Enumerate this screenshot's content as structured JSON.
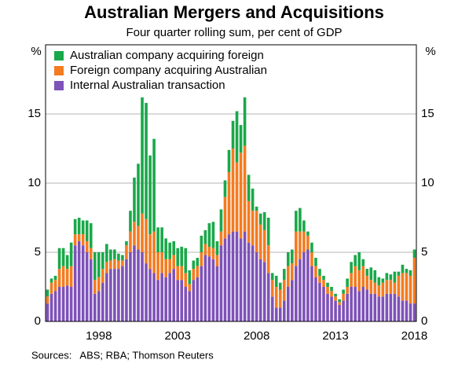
{
  "chart_data": {
    "type": "stacked_bar",
    "title": "Australian Mergers and Acquisitions",
    "subtitle": "Four quarter rolling sum, per cent of GDP",
    "ylabel": "%",
    "y2label": "%",
    "source": "Sources:   ABS; RBA; Thomson Reuters",
    "categories": [
      null,
      null,
      null,
      null,
      null,
      null,
      null,
      null,
      null,
      null,
      null,
      null,
      null,
      "1998",
      null,
      null,
      null,
      null,
      null,
      null,
      null,
      null,
      null,
      null,
      null,
      null,
      null,
      null,
      null,
      null,
      null,
      null,
      null,
      "2003",
      null,
      null,
      null,
      null,
      null,
      null,
      null,
      null,
      null,
      null,
      null,
      null,
      null,
      null,
      null,
      null,
      null,
      null,
      null,
      "2008",
      null,
      null,
      null,
      null,
      null,
      null,
      null,
      null,
      null,
      null,
      null,
      null,
      null,
      null,
      null,
      null,
      null,
      null,
      null,
      "2013",
      null,
      null,
      null,
      null,
      null,
      null,
      null,
      null,
      null,
      null,
      null,
      null,
      null,
      null,
      null,
      null,
      null,
      null,
      null,
      "2018"
    ],
    "series": [
      {
        "name": "Australian company acquiring foreign",
        "color": "#1aa84a",
        "values": [
          0.5,
          0.3,
          0.3,
          1.5,
          1.3,
          1.0,
          1.7,
          1.1,
          1.2,
          1.0,
          1.5,
          1.8,
          2.0,
          1.8,
          1.2,
          1.3,
          0.8,
          0.7,
          0.5,
          0.4,
          0.3,
          1.5,
          3.2,
          4.5,
          8.4,
          8.4,
          5.7,
          6.7,
          1.8,
          1.8,
          1.5,
          1.2,
          1.0,
          1.3,
          1.4,
          1.8,
          1.0,
          0.6,
          0.6,
          1.2,
          1.0,
          1.7,
          1.9,
          1.0,
          1.6,
          1.2,
          1.6,
          2.0,
          3.7,
          2.0,
          3.5,
          1.9,
          1.6,
          0.3,
          0.8,
          1.3,
          2.0,
          0.5,
          0.8,
          0.5,
          0.8,
          1.0,
          1.0,
          1.5,
          1.7,
          0.8,
          0.3,
          0.7,
          0.6,
          0.5,
          0.3,
          0.3,
          0.3,
          0.2,
          0.2,
          0.3,
          0.6,
          0.8,
          0.8,
          1.3,
          0.5,
          0.5,
          0.9,
          0.9,
          0.6,
          0.3,
          0.5,
          0.4,
          0.8,
          0.3,
          0.6,
          0.3,
          0.4,
          0.6
        ]
      },
      {
        "name": "Foreign company acquiring Australian",
        "color": "#f47b20",
        "values": [
          0.5,
          0.8,
          0.8,
          1.3,
          1.5,
          1.2,
          1.5,
          0.8,
          0.5,
          0.8,
          0.8,
          0.8,
          1.0,
          1.0,
          1.0,
          0.8,
          0.6,
          0.7,
          0.6,
          0.4,
          1.0,
          1.5,
          1.7,
          1.7,
          2.8,
          3.2,
          2.5,
          3.0,
          2.0,
          1.5,
          1.3,
          1.0,
          1.0,
          1.0,
          1.0,
          1.0,
          0.5,
          0.8,
          0.8,
          1.0,
          0.8,
          0.7,
          0.8,
          0.8,
          1.0,
          3.0,
          4.5,
          6.0,
          5.0,
          6.2,
          6.2,
          3.0,
          2.5,
          3.0,
          2.5,
          2.3,
          2.0,
          1.2,
          1.5,
          1.3,
          1.5,
          1.5,
          1.2,
          2.5,
          2.0,
          1.5,
          1.0,
          1.0,
          0.8,
          0.5,
          0.5,
          0.5,
          0.4,
          0.3,
          0.2,
          0.5,
          0.5,
          1.0,
          1.5,
          1.5,
          1.5,
          1.0,
          1.0,
          0.8,
          0.8,
          1.0,
          1.0,
          1.0,
          0.8,
          1.5,
          2.0,
          2.0,
          2.0,
          3.3
        ]
      },
      {
        "name": "Internal Australian transaction",
        "color": "#7e52b8",
        "values": [
          1.3,
          2.0,
          2.2,
          2.5,
          2.5,
          2.6,
          2.5,
          5.5,
          5.8,
          5.5,
          5.0,
          4.5,
          2.0,
          2.2,
          2.8,
          3.5,
          3.8,
          3.8,
          3.8,
          4.0,
          4.5,
          5.0,
          5.5,
          5.2,
          5.0,
          4.2,
          3.8,
          3.5,
          3.0,
          3.5,
          3.2,
          3.5,
          3.8,
          3.0,
          3.0,
          2.5,
          2.2,
          3.0,
          3.2,
          4.0,
          4.8,
          4.7,
          4.5,
          4.0,
          5.5,
          6.0,
          6.3,
          6.5,
          6.5,
          6.0,
          6.5,
          5.7,
          5.5,
          5.0,
          4.5,
          4.3,
          3.5,
          1.8,
          1.0,
          1.0,
          1.5,
          2.5,
          3.0,
          4.0,
          4.5,
          5.0,
          5.2,
          4.0,
          3.2,
          2.8,
          2.5,
          2.0,
          1.8,
          1.5,
          1.2,
          1.5,
          2.0,
          2.5,
          2.5,
          2.2,
          2.5,
          2.3,
          2.0,
          2.0,
          1.8,
          1.8,
          2.0,
          2.0,
          2.0,
          1.8,
          1.5,
          1.5,
          1.3,
          1.3
        ]
      }
    ],
    "ylim": [
      0,
      20
    ],
    "yticks": [
      0,
      5,
      10,
      15
    ],
    "y2lim": [
      0,
      20
    ],
    "y2ticks": [
      0,
      5,
      10,
      15
    ],
    "grid": true,
    "legend": "upper left"
  }
}
